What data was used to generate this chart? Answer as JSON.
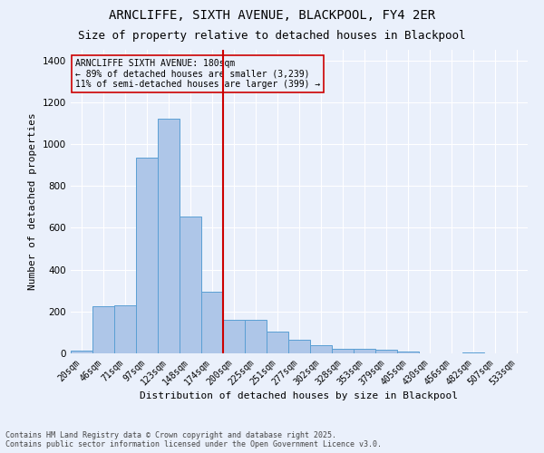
{
  "title": "ARNCLIFFE, SIXTH AVENUE, BLACKPOOL, FY4 2ER",
  "subtitle": "Size of property relative to detached houses in Blackpool",
  "xlabel": "Distribution of detached houses by size in Blackpool",
  "ylabel": "Number of detached properties",
  "footnote1": "Contains HM Land Registry data © Crown copyright and database right 2025.",
  "footnote2": "Contains public sector information licensed under the Open Government Licence v3.0.",
  "categories": [
    "20sqm",
    "46sqm",
    "71sqm",
    "97sqm",
    "123sqm",
    "148sqm",
    "174sqm",
    "200sqm",
    "225sqm",
    "251sqm",
    "277sqm",
    "302sqm",
    "328sqm",
    "353sqm",
    "379sqm",
    "405sqm",
    "430sqm",
    "456sqm",
    "482sqm",
    "507sqm",
    "533sqm"
  ],
  "values": [
    12,
    225,
    228,
    935,
    1120,
    655,
    295,
    160,
    160,
    105,
    65,
    40,
    20,
    20,
    16,
    10,
    0,
    0,
    6,
    0,
    0
  ],
  "bar_color": "#aec6e8",
  "bar_edge_color": "#5a9fd4",
  "vline_color": "#cc0000",
  "vline_x_index": 6,
  "ylim": [
    0,
    1450
  ],
  "yticks": [
    0,
    200,
    400,
    600,
    800,
    1000,
    1200,
    1400
  ],
  "annotation_title": "ARNCLIFFE SIXTH AVENUE: 180sqm",
  "annotation_line2": "← 89% of detached houses are smaller (3,239)",
  "annotation_line3": "11% of semi-detached houses are larger (399) →",
  "annotation_box_color": "#cc0000",
  "bg_color": "#eaf0fb",
  "grid_color": "#ffffff",
  "title_fontsize": 10,
  "subtitle_fontsize": 9,
  "tick_fontsize": 7,
  "ylabel_fontsize": 8,
  "xlabel_fontsize": 8,
  "annotation_fontsize": 7,
  "footnote_fontsize": 6
}
